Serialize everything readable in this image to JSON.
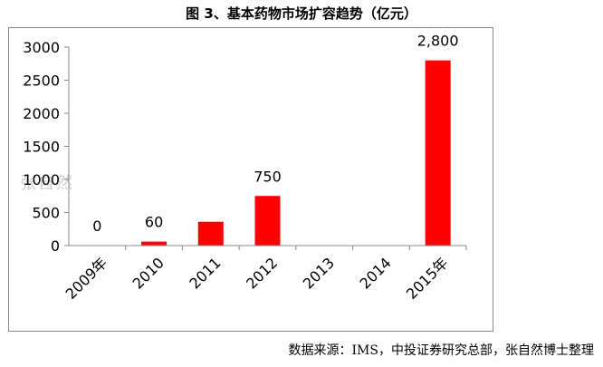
{
  "chart_data": {
    "type": "bar",
    "title": "图 3、基本药物市场扩容趋势（亿元）",
    "categories": [
      "2009年",
      "2010",
      "2011",
      "2012",
      "2013",
      "2014",
      "2015年"
    ],
    "values": [
      0,
      60,
      360,
      750,
      0,
      0,
      2800
    ],
    "data_labels": [
      "0",
      "60",
      "",
      "750",
      "",
      "",
      "2,800"
    ],
    "yticks": [
      "0",
      "500",
      "1000",
      "1500",
      "2000",
      "2500",
      "3000"
    ],
    "ylim": [
      0,
      3000
    ],
    "xlabel": "",
    "ylabel": "",
    "grid": false,
    "bar_color": "#ff0000"
  },
  "source_note": "数据来源：IMS，中投证券研究总部，张自然博士整理",
  "watermark": "张自然"
}
